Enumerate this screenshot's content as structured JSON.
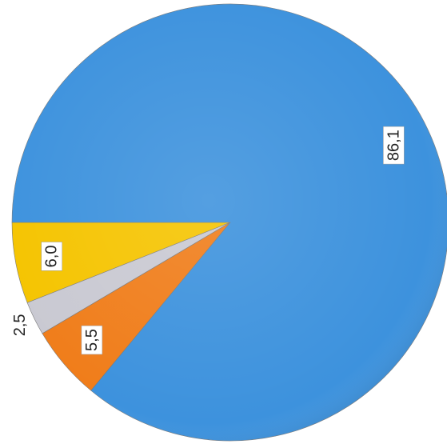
{
  "chart_data": {
    "type": "pie",
    "values": [
      6.0,
      2.5,
      5.5,
      86.1
    ],
    "value_labels": [
      "6,0",
      "2,5",
      "5,5",
      "86,1"
    ],
    "colors": [
      "#f5c400",
      "#c9c9d2",
      "#f07d1a",
      "#3d92dd"
    ]
  }
}
